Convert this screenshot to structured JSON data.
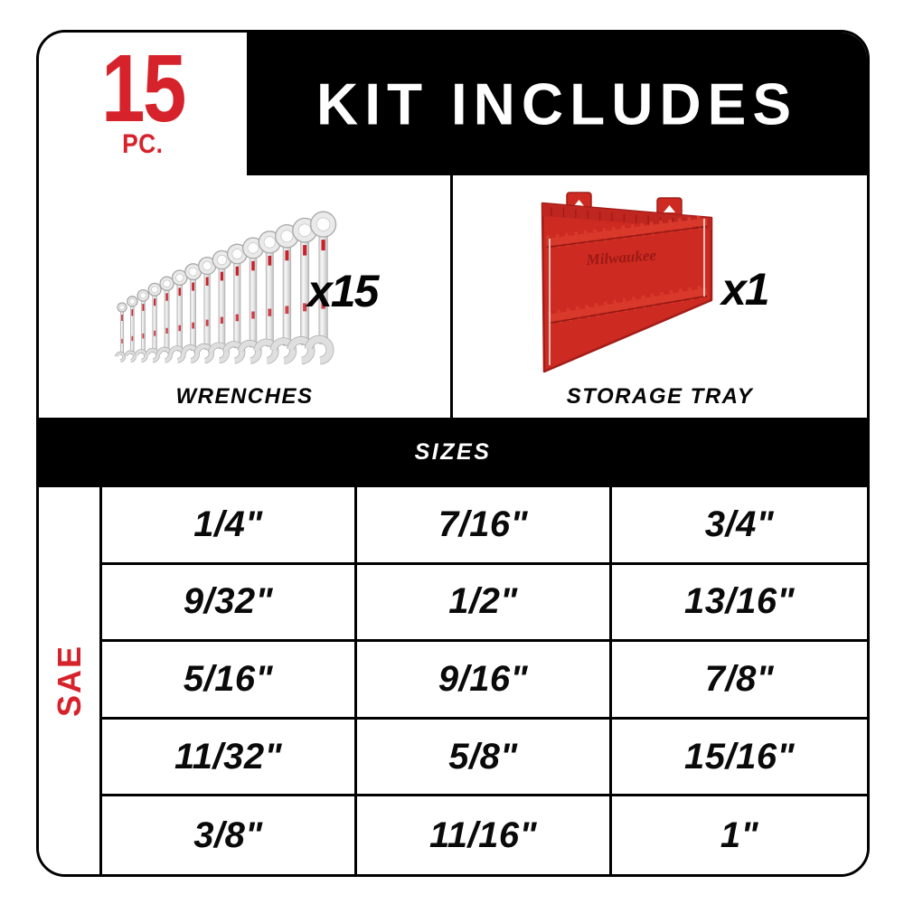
{
  "header": {
    "count": "15",
    "unit": "PC.",
    "title": "KIT INCLUDES"
  },
  "items": [
    {
      "label": "WRENCHES",
      "quantity": "x15"
    },
    {
      "label": "STORAGE TRAY",
      "quantity": "x1"
    }
  ],
  "sizes_section": {
    "title": "SIZES",
    "system": "SAE",
    "rows": [
      [
        "1/4\"",
        "7/16\"",
        "3/4\""
      ],
      [
        "9/32\"",
        "1/2\"",
        "13/16\""
      ],
      [
        "5/16\"",
        "9/16\"",
        "7/8\""
      ],
      [
        "11/32\"",
        "5/8\"",
        "15/16\""
      ],
      [
        "3/8\"",
        "11/16\"",
        "1\""
      ]
    ]
  },
  "graphics": {
    "wrench_count": 15,
    "tray_count": 1,
    "tray_logo": "Milwaukee"
  },
  "colors": {
    "brand_red": "#d6232b",
    "tray_red": "#cd2a21",
    "tray_dark_red": "#a21d18",
    "black": "#000000",
    "white": "#ffffff",
    "chrome": "#e2e2e2"
  }
}
